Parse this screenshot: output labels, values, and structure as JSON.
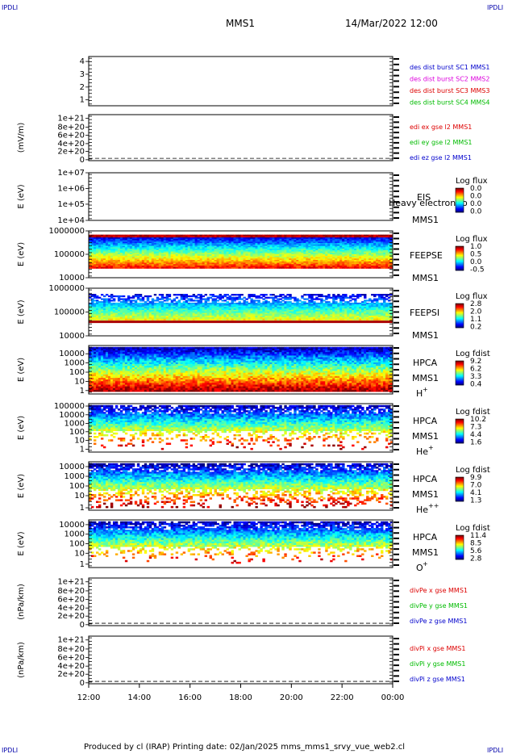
{
  "corners": {
    "tl": "IPDLI",
    "tr": "IPDLI",
    "bl": "IPDLI",
    "br": "IPDLI"
  },
  "header": {
    "spacecraft": "MMS1",
    "date_time": "14/Mar/2022 12:00"
  },
  "footer": {
    "text": "Produced by cl (IRAP)   Printing date: 02/Jan/2025   mms_mms1_srvy_vue_web2.cl"
  },
  "colors": {
    "blue": "#0000cc",
    "magenta": "#dd00dd",
    "red": "#dd0000",
    "green": "#00bb00"
  },
  "chart_data": [
    {
      "type": "line",
      "ylabel": "",
      "yticks": [
        "4",
        "3",
        "2",
        "1"
      ],
      "legend": [
        {
          "name": "des dist burst SC1 MMS1",
          "color": "#0000cc"
        },
        {
          "name": "des dist burst SC2 MMS2",
          "color": "#dd00dd"
        },
        {
          "name": "des dist burst SC3 MMS3",
          "color": "#dd0000"
        },
        {
          "name": "des dist burst SC4 MMS4",
          "color": "#00bb00"
        }
      ]
    },
    {
      "type": "line",
      "ylabel": "(mV/m)",
      "yticks": [
        "1e+21",
        "8e+20",
        "6e+20",
        "4e+20",
        "2e+20",
        "0"
      ],
      "legend": [
        {
          "name": "edi ex gse l2 MMS1",
          "color": "#dd0000"
        },
        {
          "name": "edi ey gse l2 MMS1",
          "color": "#00bb00"
        },
        {
          "name": "edi ez gse l2 MMS1",
          "color": "#0000cc"
        }
      ]
    },
    {
      "type": "heatmap",
      "ylabel": "E (eV)",
      "yticks": [
        "1e+07",
        "1e+06",
        "1e+05",
        "1e+04"
      ],
      "labels": [
        "EIS",
        "Heavy electron to",
        "MMS1"
      ],
      "colorbar": {
        "title": "Log flux",
        "ticks": [
          "0.0",
          "0.0",
          "0.0",
          "0.0"
        ]
      }
    },
    {
      "type": "heatmap",
      "ylabel": "E (eV)",
      "yticks": [
        "1000000",
        "100000",
        "10000"
      ],
      "labels": [
        "FEEPSE",
        "MMS1"
      ],
      "colorbar": {
        "title": "Log flux",
        "ticks": [
          "1.0",
          "0.5",
          "0.0",
          "-0.5"
        ]
      }
    },
    {
      "type": "heatmap",
      "ylabel": "E (eV)",
      "yticks": [
        "1000000",
        "100000",
        "10000"
      ],
      "labels": [
        "FEEPSI",
        "MMS1"
      ],
      "colorbar": {
        "title": "Log flux",
        "ticks": [
          "2.8",
          "2.0",
          "1.1",
          "0.2"
        ]
      }
    },
    {
      "type": "heatmap",
      "ylabel": "E (eV)",
      "yticks": [
        "10000",
        "1000",
        "100",
        "10",
        "1"
      ],
      "labels": [
        "HPCA",
        "MMS1",
        "H",
        "+"
      ],
      "colorbar": {
        "title": "Log fdist",
        "ticks": [
          "9.2",
          "6.2",
          "3.3",
          "0.4"
        ]
      }
    },
    {
      "type": "heatmap",
      "ylabel": "E (eV)",
      "yticks": [
        "100000",
        "10000",
        "1000",
        "100",
        "10",
        "1"
      ],
      "labels": [
        "HPCA",
        "MMS1",
        "He",
        "+"
      ],
      "colorbar": {
        "title": "Log fdist",
        "ticks": [
          "10.2",
          "7.3",
          "4.4",
          "1.6"
        ]
      }
    },
    {
      "type": "heatmap",
      "ylabel": "E (eV)",
      "yticks": [
        "10000",
        "1000",
        "100",
        "10",
        "1"
      ],
      "labels": [
        "HPCA",
        "MMS1",
        "He",
        "++"
      ],
      "colorbar": {
        "title": "Log fdist",
        "ticks": [
          "9.9",
          "7.0",
          "4.1",
          "1.3"
        ]
      }
    },
    {
      "type": "heatmap",
      "ylabel": "E (eV)",
      "yticks": [
        "10000",
        "1000",
        "100",
        "10",
        "1"
      ],
      "labels": [
        "HPCA",
        "MMS1",
        "O",
        "+"
      ],
      "colorbar": {
        "title": "Log fdist",
        "ticks": [
          "11.4",
          "8.5",
          "5.6",
          "2.8"
        ]
      }
    },
    {
      "type": "line",
      "ylabel": "(nPa/km)",
      "yticks": [
        "1e+21",
        "8e+20",
        "6e+20",
        "4e+20",
        "2e+20",
        "0"
      ],
      "legend": [
        {
          "name": "divPe x gse MMS1",
          "color": "#dd0000"
        },
        {
          "name": "divPe y gse MMS1",
          "color": "#00bb00"
        },
        {
          "name": "divPe z gse MMS1",
          "color": "#0000cc"
        }
      ]
    },
    {
      "type": "line",
      "ylabel": "(nPa/km)",
      "yticks": [
        "1e+21",
        "8e+20",
        "6e+20",
        "4e+20",
        "2e+20",
        "0"
      ],
      "legend": [
        {
          "name": "divPi x gse MMS1",
          "color": "#dd0000"
        },
        {
          "name": "divPi y gse MMS1",
          "color": "#00bb00"
        },
        {
          "name": "divPi z gse MMS1",
          "color": "#0000cc"
        }
      ]
    }
  ],
  "xaxis": {
    "ticks": [
      "12:00",
      "14:00",
      "16:00",
      "18:00",
      "20:00",
      "22:00",
      "00:00"
    ]
  }
}
